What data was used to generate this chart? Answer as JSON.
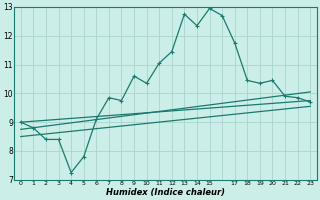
{
  "xlabel": "Humidex (Indice chaleur)",
  "xlim": [
    -0.5,
    23.5
  ],
  "ylim": [
    7,
    13
  ],
  "yticks": [
    7,
    8,
    9,
    10,
    11,
    12,
    13
  ],
  "xticks": [
    0,
    1,
    2,
    3,
    4,
    5,
    6,
    7,
    8,
    9,
    10,
    11,
    12,
    13,
    14,
    15,
    17,
    18,
    19,
    20,
    21,
    22,
    23
  ],
  "xtick_labels": [
    "0",
    "1",
    "2",
    "3",
    "4",
    "5",
    "6",
    "7",
    "8",
    "9",
    "10",
    "11",
    "12",
    "13",
    "14",
    "15",
    "17",
    "18",
    "19",
    "20",
    "21",
    "22",
    "23"
  ],
  "bg_color": "#cceee8",
  "grid_color": "#aad4ce",
  "line_color": "#1a7a6e",
  "main_line_x": [
    0,
    1,
    2,
    3,
    4,
    5,
    6,
    7,
    8,
    9,
    10,
    11,
    12,
    13,
    14,
    15,
    16,
    17,
    18,
    19,
    20,
    21,
    22,
    23
  ],
  "main_line_y": [
    9.0,
    8.8,
    8.4,
    8.4,
    7.25,
    7.8,
    9.1,
    9.85,
    9.75,
    10.6,
    10.35,
    11.05,
    11.45,
    12.75,
    12.35,
    12.95,
    12.7,
    11.75,
    10.45,
    10.35,
    10.45,
    9.9,
    9.85,
    9.7
  ],
  "reg_line1_x": [
    0,
    23
  ],
  "reg_line1_y": [
    9.0,
    9.75
  ],
  "reg_line2_x": [
    0,
    23
  ],
  "reg_line2_y": [
    8.75,
    10.05
  ],
  "reg_line3_x": [
    0,
    23
  ],
  "reg_line3_y": [
    8.5,
    9.55
  ]
}
